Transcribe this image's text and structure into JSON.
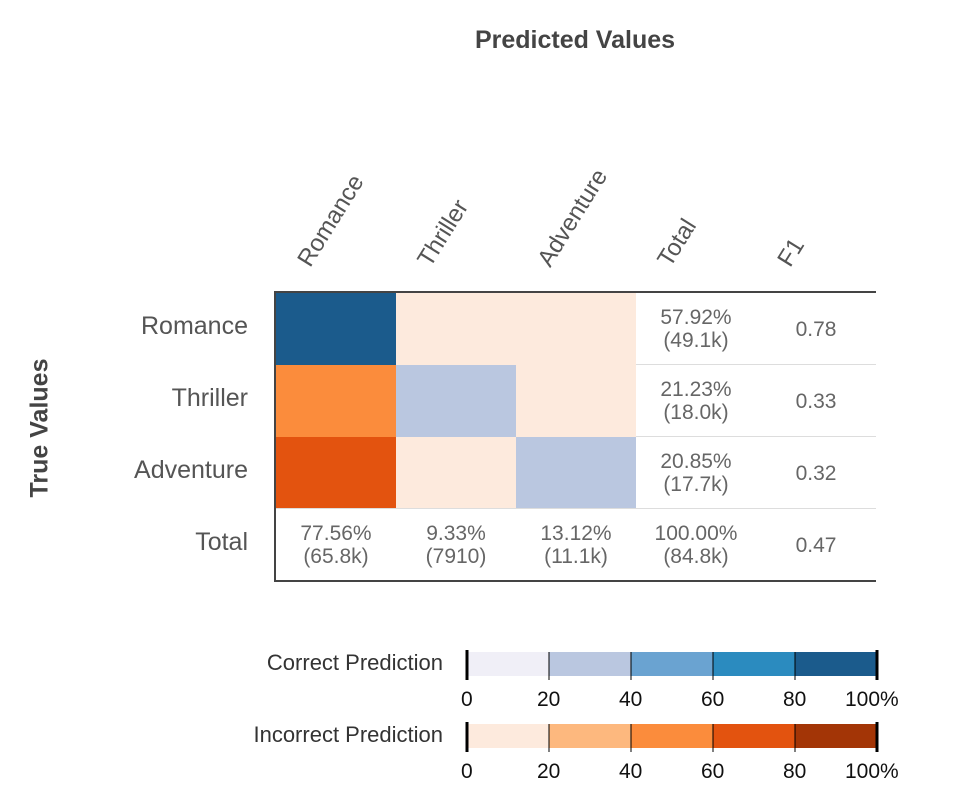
{
  "colors": {
    "correct": [
      "#f0eff7",
      "#bac7e0",
      "#6aa3d1",
      "#2b8bbf",
      "#1b5b8c"
    ],
    "incorrect": [
      "#fdeadd",
      "#fdb87e",
      "#fb8c3c",
      "#e3530f",
      "#a33506"
    ]
  },
  "chart_data": {
    "type": "heatmap",
    "title": "Predicted Values",
    "xlabel": "Predicted Values",
    "ylabel": "True Values",
    "classes": [
      "Romance",
      "Thriller",
      "Adventure"
    ],
    "column_headers": [
      "Romance",
      "Thriller",
      "Adventure",
      "Total",
      "F1"
    ],
    "row_headers": [
      "Romance",
      "Thriller",
      "Adventure",
      "Total"
    ],
    "cell_levels": [
      [
        {
          "kind": "correct",
          "level": 4
        },
        {
          "kind": "incorrect",
          "level": 0
        },
        {
          "kind": "incorrect",
          "level": 0
        }
      ],
      [
        {
          "kind": "incorrect",
          "level": 2
        },
        {
          "kind": "correct",
          "level": 1
        },
        {
          "kind": "incorrect",
          "level": 0
        }
      ],
      [
        {
          "kind": "incorrect",
          "level": 3
        },
        {
          "kind": "incorrect",
          "level": 0
        },
        {
          "kind": "correct",
          "level": 1
        }
      ]
    ],
    "row_totals": [
      {
        "percent": "57.92%",
        "count": "(49.1k)"
      },
      {
        "percent": "21.23%",
        "count": "(18.0k)"
      },
      {
        "percent": "20.85%",
        "count": "(17.7k)"
      }
    ],
    "row_f1": [
      "0.78",
      "0.33",
      "0.32"
    ],
    "column_totals": [
      {
        "percent": "77.56%",
        "count": "(65.8k)"
      },
      {
        "percent": "9.33%",
        "count": "(7910)"
      },
      {
        "percent": "13.12%",
        "count": "(11.1k)"
      },
      {
        "percent": "100.00%",
        "count": "(84.8k)"
      }
    ],
    "overall_f1": "0.47",
    "legend": {
      "correct_label": "Correct Prediction",
      "incorrect_label": "Incorrect Prediction",
      "ticks": [
        "0",
        "20",
        "40",
        "60",
        "80",
        "100%"
      ]
    }
  }
}
